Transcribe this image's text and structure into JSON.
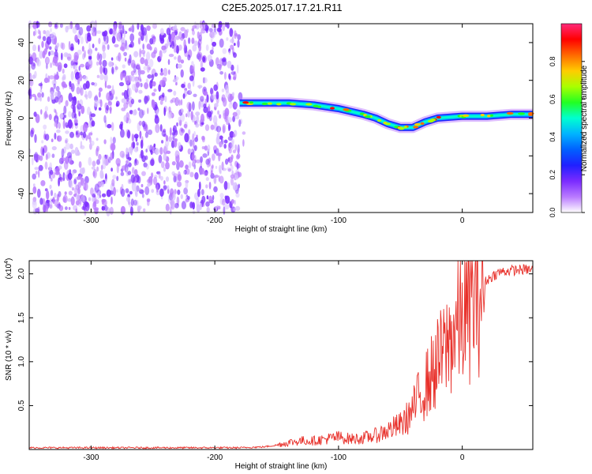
{
  "title": "C2E5.2025.017.17.21.R11",
  "colors": {
    "line": "#e8302a",
    "cmap": [
      "#ffffff",
      "#b97aff",
      "#7a2bff",
      "#2020ff",
      "#00a8ff",
      "#00ffd0",
      "#22ff22",
      "#aaff00",
      "#ffcc00",
      "#ff6a00",
      "#ff0000",
      "#ff2a7a"
    ]
  },
  "chart_data": [
    {
      "type": "heatmap",
      "xlabel": "Height of straight line (km)",
      "ylabel": "Frequency (Hz)",
      "xlim": [
        -350,
        57
      ],
      "ylim": [
        -50,
        50
      ],
      "xticks": [
        -300,
        -200,
        -100,
        0
      ],
      "xtick_labels": [
        "-300",
        "-200",
        "-100",
        "0"
      ],
      "yticks": [
        -40,
        -20,
        0,
        20,
        40
      ],
      "ytick_labels": [
        "-40",
        "-20",
        "0",
        "20",
        "40"
      ],
      "noise_region_x": [
        -350,
        -180
      ],
      "signal_track": [
        {
          "x": -180,
          "y": 8
        },
        {
          "x": -160,
          "y": 8
        },
        {
          "x": -140,
          "y": 8
        },
        {
          "x": -120,
          "y": 7
        },
        {
          "x": -100,
          "y": 5
        },
        {
          "x": -80,
          "y": 2
        },
        {
          "x": -70,
          "y": 0
        },
        {
          "x": -60,
          "y": -3
        },
        {
          "x": -50,
          "y": -5
        },
        {
          "x": -40,
          "y": -5
        },
        {
          "x": -30,
          "y": -2
        },
        {
          "x": -20,
          "y": 0
        },
        {
          "x": 0,
          "y": 1
        },
        {
          "x": 20,
          "y": 1
        },
        {
          "x": 40,
          "y": 2
        },
        {
          "x": 57,
          "y": 2
        }
      ],
      "colorbar": {
        "label": "Normalized spectral amplitude",
        "range": [
          0,
          1
        ],
        "ticks": [
          0.0,
          0.2,
          0.4,
          0.6,
          0.8
        ],
        "tick_labels": [
          "0.0",
          "0.2",
          "0.4",
          "0.6",
          "0.8"
        ]
      }
    },
    {
      "type": "line",
      "xlabel": "Height of straight line (km)",
      "ylabel": "SNR (10 * v/v)",
      "multiplier_label": "(x10",
      "multiplier_exp": "4",
      "multiplier_close": ")",
      "xlim": [
        -350,
        57
      ],
      "ylim": [
        0,
        2.15
      ],
      "xticks": [
        -300,
        -200,
        -100,
        0
      ],
      "xtick_labels": [
        "-300",
        "-200",
        "-100",
        "0"
      ],
      "yticks": [
        0.5,
        1.0,
        1.5,
        2.0
      ],
      "ytick_labels": [
        "0.5",
        "1.0",
        "1.5",
        "2.0"
      ],
      "series": [
        {
          "color": "#e8302a",
          "x": [
            -350,
            -300,
            -250,
            -200,
            -180,
            -160,
            -150,
            -140,
            -130,
            -120,
            -110,
            -100,
            -90,
            -80,
            -70,
            -60,
            -50,
            -45,
            -40,
            -35,
            -30,
            -25,
            -20,
            -15,
            -10,
            -5,
            0,
            5,
            10,
            15,
            20,
            25,
            30,
            40,
            50,
            57
          ],
          "y": [
            0.02,
            0.02,
            0.02,
            0.02,
            0.02,
            0.03,
            0.05,
            0.08,
            0.1,
            0.1,
            0.12,
            0.14,
            0.12,
            0.13,
            0.16,
            0.22,
            0.28,
            0.35,
            0.45,
            0.6,
            0.72,
            0.85,
            0.98,
            1.1,
            1.25,
            1.38,
            1.5,
            1.6,
            1.72,
            1.85,
            1.93,
            1.98,
            2.02,
            2.04,
            2.05,
            2.05
          ]
        }
      ]
    }
  ]
}
